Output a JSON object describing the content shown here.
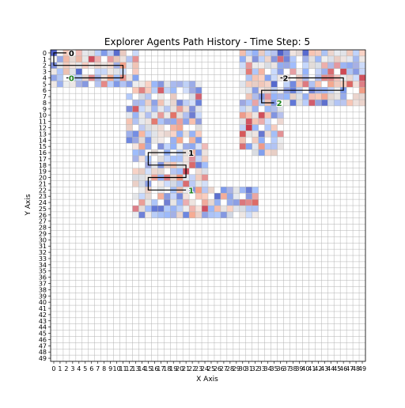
{
  "chart_data": {
    "type": "heatmap",
    "title": "Explorer Agents Path History - Time Step: 5",
    "xlabel": "X Axis",
    "ylabel": "Y Axis",
    "grid_size": 50,
    "x_ticks": [
      0,
      1,
      2,
      3,
      4,
      5,
      6,
      7,
      8,
      9,
      10,
      11,
      12,
      13,
      14,
      15,
      16,
      17,
      18,
      19,
      20,
      21,
      22,
      23,
      24,
      25,
      26,
      27,
      28,
      29,
      30,
      31,
      32,
      33,
      34,
      35,
      36,
      37,
      38,
      39,
      40,
      41,
      42,
      43,
      44,
      45,
      46,
      47,
      48,
      49
    ],
    "y_ticks": [
      0,
      1,
      2,
      3,
      4,
      5,
      6,
      7,
      8,
      9,
      10,
      11,
      12,
      13,
      14,
      15,
      16,
      17,
      18,
      19,
      20,
      21,
      22,
      23,
      24,
      25,
      26,
      27,
      28,
      29,
      30,
      31,
      32,
      33,
      34,
      35,
      36,
      37,
      38,
      39,
      40,
      41,
      42,
      43,
      44,
      45,
      46,
      47,
      48,
      49
    ],
    "y_inverted": true,
    "grid": true,
    "colormap": "coolwarm",
    "heat_regions": [
      {
        "x": [
          0,
          13
        ],
        "y": [
          0,
          5
        ]
      },
      {
        "x": [
          12,
          23
        ],
        "y": [
          5,
          15
        ]
      },
      {
        "x": [
          13,
          24
        ],
        "y": [
          15,
          26
        ]
      },
      {
        "x": [
          24,
          32
        ],
        "y": [
          22,
          26
        ]
      },
      {
        "x": [
          30,
          49
        ],
        "y": [
          0,
          8
        ]
      },
      {
        "x": [
          30,
          36
        ],
        "y": [
          8,
          16
        ]
      }
    ],
    "agents": [
      {
        "label": "0",
        "label_color": "#000000",
        "start_color": "#1a7f1a",
        "path": [
          [
            2,
            0
          ],
          [
            0,
            0
          ],
          [
            0,
            2
          ],
          [
            11,
            2
          ],
          [
            11,
            4
          ],
          [
            2,
            4
          ]
        ]
      },
      {
        "label": "1",
        "label_color": "#000000",
        "start_color": "#1a7f1a",
        "path": [
          [
            21,
            16
          ],
          [
            15,
            16
          ],
          [
            15,
            18
          ],
          [
            21,
            18
          ],
          [
            21,
            20
          ],
          [
            15,
            20
          ],
          [
            15,
            22
          ],
          [
            21,
            22
          ]
        ]
      },
      {
        "label": "2",
        "label_color": "#000000",
        "start_color": "#1a7f1a",
        "path": [
          [
            36,
            4
          ],
          [
            46,
            4
          ],
          [
            46,
            6
          ],
          [
            33,
            6
          ],
          [
            33,
            8
          ],
          [
            35,
            8
          ]
        ]
      }
    ]
  }
}
